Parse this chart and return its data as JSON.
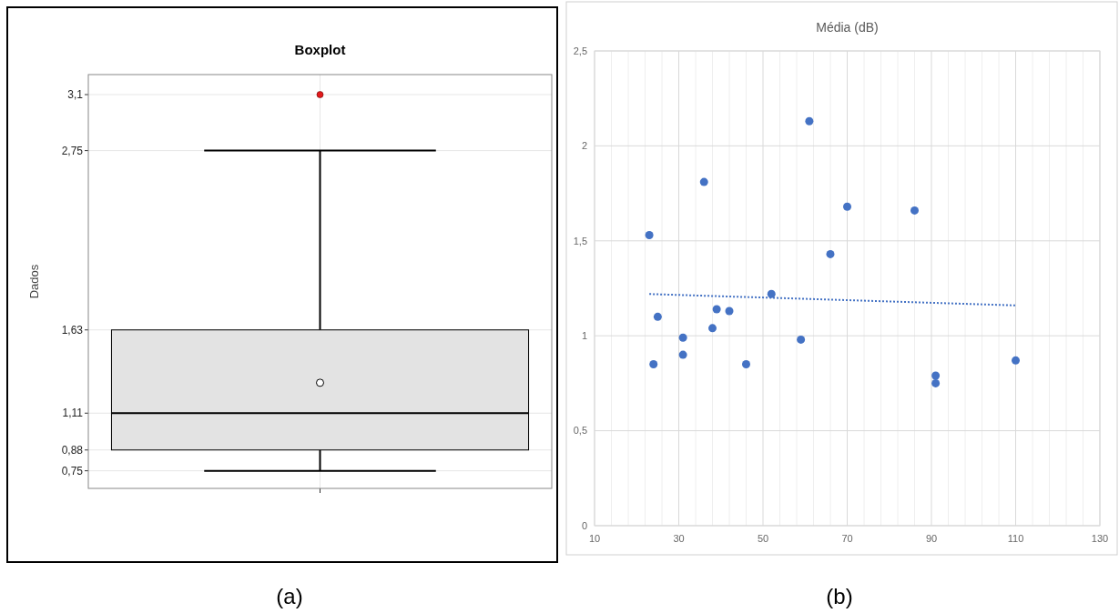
{
  "chart_data": [
    {
      "type": "box",
      "title": "Boxplot",
      "ylabel": "Dados",
      "annotations": [
        "(a)"
      ],
      "categories": [
        null
      ],
      "color": "#e3e3e3",
      "boxes": [
        {
          "low": 0.75,
          "q1": 0.88,
          "median": 1.11,
          "q3": 1.63,
          "high": 2.75,
          "mean": 1.3,
          "outliers": [
            3.1
          ]
        }
      ],
      "ylim": [
        0.64,
        3.225
      ],
      "yticks": [
        {
          "value": 0.75,
          "label": "0,75"
        },
        {
          "value": 0.88,
          "label": "0,88"
        },
        {
          "value": 1.11,
          "label": "1,11"
        },
        {
          "value": 1.63,
          "label": "1,63"
        },
        {
          "value": 2.75,
          "label": "2,75"
        },
        {
          "value": 3.1,
          "label": "3,1"
        }
      ],
      "grid": true
    },
    {
      "type": "scatter",
      "title": "Média (dB)",
      "annotations": [
        "(b)"
      ],
      "series": [
        {
          "type": "scatter",
          "color": "#4472c4",
          "marker": "circle",
          "x": [
            23,
            24,
            25,
            31,
            31,
            36,
            38,
            39,
            42,
            46,
            52,
            59,
            61,
            66,
            70,
            86,
            91,
            91,
            110
          ],
          "values": [
            1.53,
            0.85,
            1.1,
            0.99,
            0.9,
            1.81,
            1.04,
            1.14,
            1.13,
            0.85,
            1.22,
            0.98,
            2.13,
            1.43,
            1.68,
            1.66,
            0.79,
            0.75,
            0.87
          ]
        },
        {
          "type": "line",
          "color": "#4472c4",
          "line_style": "dotted",
          "x": [
            23,
            110
          ],
          "values": [
            1.22,
            1.16
          ]
        }
      ],
      "xlim": [
        10,
        130
      ],
      "xticks": [
        10,
        {
          "value": 14,
          "label": null
        },
        {
          "value": 18,
          "label": null
        },
        {
          "value": 22,
          "label": null
        },
        {
          "value": 26,
          "label": null
        },
        30,
        {
          "value": 34,
          "label": null
        },
        {
          "value": 38,
          "label": null
        },
        {
          "value": 42,
          "label": null
        },
        {
          "value": 46,
          "label": null
        },
        50,
        {
          "value": 54,
          "label": null
        },
        {
          "value": 58,
          "label": null
        },
        {
          "value": 62,
          "label": null
        },
        {
          "value": 66,
          "label": null
        },
        70,
        {
          "value": 74,
          "label": null
        },
        {
          "value": 78,
          "label": null
        },
        {
          "value": 82,
          "label": null
        },
        {
          "value": 86,
          "label": null
        },
        90,
        {
          "value": 94,
          "label": null
        },
        {
          "value": 98,
          "label": null
        },
        {
          "value": 102,
          "label": null
        },
        {
          "value": 106,
          "label": null
        },
        110,
        {
          "value": 114,
          "label": null
        },
        {
          "value": 118,
          "label": null
        },
        {
          "value": 122,
          "label": null
        },
        {
          "value": 126,
          "label": null
        },
        130
      ],
      "ylim": [
        0,
        2.5
      ],
      "yticks": [
        0,
        {
          "value": 0.5,
          "label": "0,5"
        },
        1,
        {
          "value": 1.5,
          "label": "1,5"
        },
        2,
        {
          "value": 2.5,
          "label": "2,5"
        }
      ],
      "grid": true
    }
  ]
}
